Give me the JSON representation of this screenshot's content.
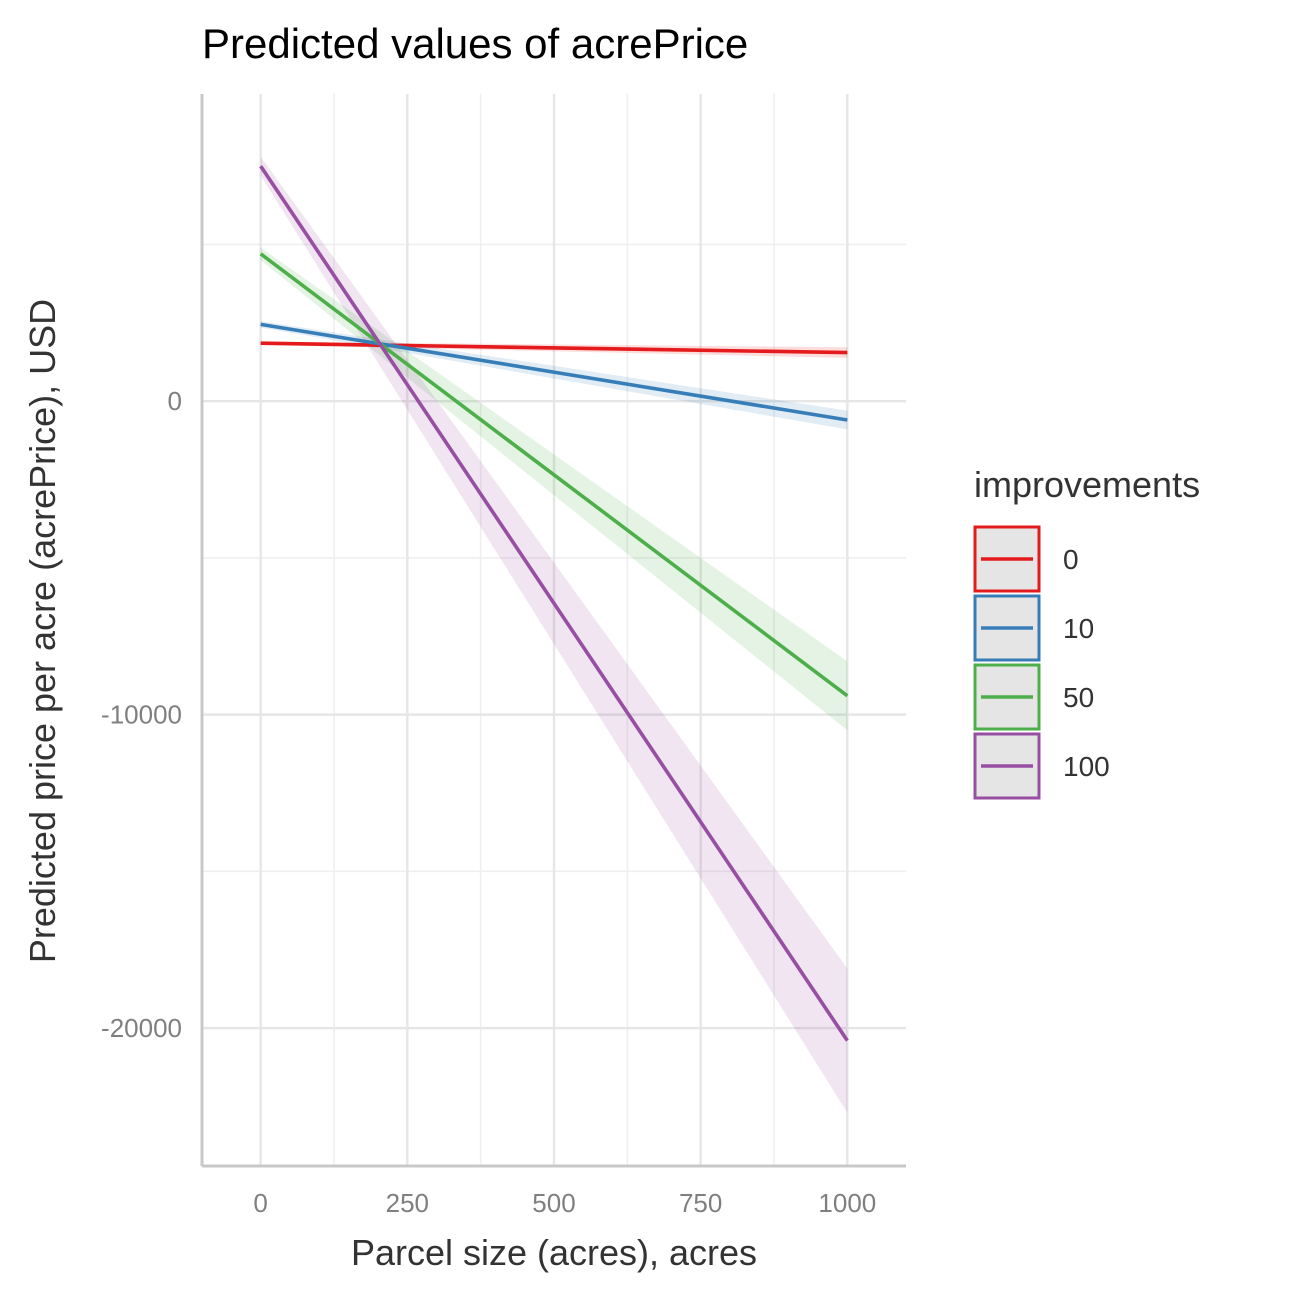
{
  "chart_data": {
    "type": "line",
    "title": "Predicted values of acrePrice",
    "xlabel": "Parcel size (acres), acres",
    "ylabel": "Predicted price per acre (acrePrice), USD",
    "xlim": [
      -100,
      1100
    ],
    "ylim": [
      -24400,
      9800
    ],
    "x_ticks": [
      0,
      250,
      500,
      750,
      1000
    ],
    "x_tick_labels": [
      "0",
      "250",
      "500",
      "750",
      "1000"
    ],
    "x_minor_ticks": [
      125,
      375,
      625,
      875
    ],
    "y_ticks": [
      -20000,
      -10000,
      0
    ],
    "y_tick_labels": [
      "-20000",
      "-10000",
      "0"
    ],
    "y_minor_ticks": [
      -15000,
      -5000,
      5000
    ],
    "grid": true,
    "legend": {
      "title": "improvements",
      "position": "right"
    },
    "x": [
      0,
      1000
    ],
    "series": [
      {
        "name": "0",
        "color": "#E41A1C",
        "values": [
          1850,
          1550
        ],
        "ci_low": [
          1800,
          1380
        ],
        "ci_high": [
          1900,
          1720
        ]
      },
      {
        "name": "10",
        "color": "#377EB8",
        "values": [
          2450,
          -600
        ],
        "ci_low": [
          2350,
          -900
        ],
        "ci_high": [
          2550,
          -300
        ]
      },
      {
        "name": "50",
        "color": "#4DAF4A",
        "values": [
          4700,
          -9400
        ],
        "ci_low": [
          4500,
          -10500
        ],
        "ci_high": [
          4900,
          -8300
        ]
      },
      {
        "name": "100",
        "color": "#984EA3",
        "values": [
          7500,
          -20400
        ],
        "ci_low": [
          7200,
          -22700
        ],
        "ci_high": [
          7800,
          -18100
        ]
      }
    ]
  }
}
